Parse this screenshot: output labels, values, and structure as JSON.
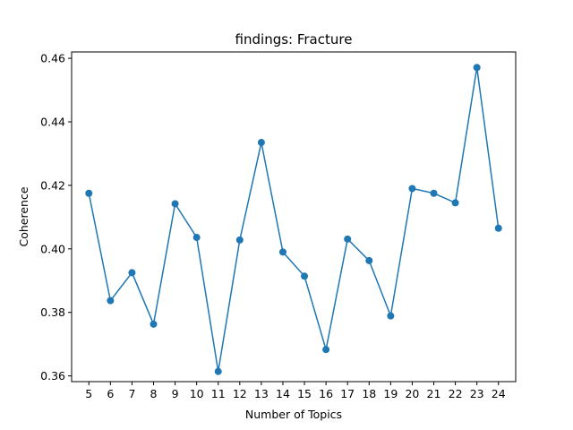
{
  "chart_data": {
    "type": "line",
    "title": "findings: Fracture",
    "xlabel": "Number of Topics",
    "ylabel": "Coherence",
    "x": [
      5,
      6,
      7,
      8,
      9,
      10,
      11,
      12,
      13,
      14,
      15,
      16,
      17,
      18,
      19,
      20,
      21,
      22,
      23,
      24
    ],
    "series": [
      {
        "name": "Coherence",
        "values": [
          0.4175,
          0.3837,
          0.3925,
          0.3763,
          0.4142,
          0.4036,
          0.3614,
          0.4028,
          0.4335,
          0.399,
          0.3914,
          0.3683,
          0.4031,
          0.3963,
          0.3789,
          0.419,
          0.4175,
          0.4145,
          0.4571,
          0.4065
        ],
        "color": "#1f77b4"
      }
    ],
    "xlim": [
      4.2,
      24.8
    ],
    "ylim": [
      0.3582,
      0.462
    ],
    "yticks": [
      0.36,
      0.38,
      0.4,
      0.42,
      0.44,
      0.46
    ],
    "ytick_labels": [
      "0.36",
      "0.38",
      "0.40",
      "0.42",
      "0.44",
      "0.46"
    ],
    "xtick_labels": [
      "5",
      "6",
      "7",
      "8",
      "9",
      "10",
      "11",
      "12",
      "13",
      "14",
      "15",
      "16",
      "17",
      "18",
      "19",
      "20",
      "21",
      "22",
      "23",
      "24"
    ],
    "grid": false,
    "legend": "none"
  }
}
